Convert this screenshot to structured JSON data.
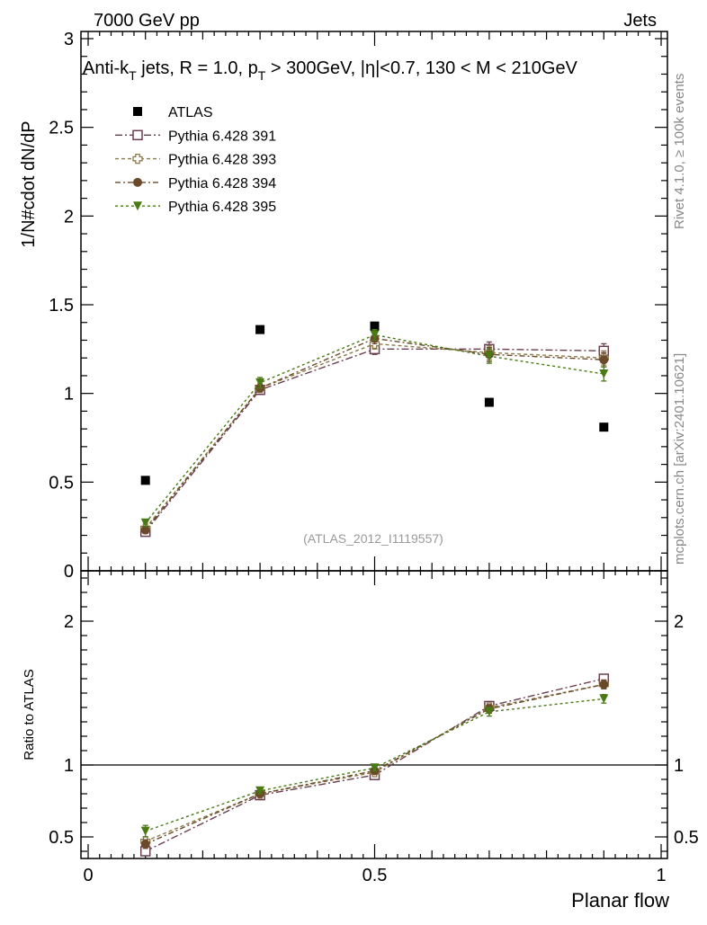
{
  "header": {
    "energy_label": "7000 GeV pp",
    "category_label": "Jets"
  },
  "side_text": {
    "rivet": "Rivet 4.1.0, ≥ 100k events",
    "mcplots": "mcplots.cern.ch [arXiv:2401.10621]"
  },
  "chart_data": [
    {
      "type": "scatter",
      "panel": "main",
      "title": "Anti-kT jets, R = 1.0, pT > 300GeV, |η|<0.7, 130 < M < 210GeV",
      "title_parts": {
        "a": "Anti-k",
        "b": "T",
        "c": " jets, R = 1.0, p",
        "d": "T",
        "e": " > 300GeV, |η|<0.7, 130 < M < 210GeV"
      },
      "ylabel": "1/N#cdot dN/dP",
      "xlabel": "Planar flow",
      "watermark": "(ATLAS_2012_I1119557)",
      "xlim": [
        0,
        1
      ],
      "ylim": [
        0,
        3
      ],
      "yticks": [
        "0",
        "0.5",
        "1",
        "1.5",
        "2",
        "2.5",
        "3"
      ],
      "x": [
        0.1,
        0.3,
        0.5,
        0.7,
        0.9
      ],
      "legend_position": "top-left",
      "series": [
        {
          "name": "ATLAS",
          "color": "#000000",
          "marker": "square-filled",
          "values": [
            0.51,
            1.36,
            1.38,
            0.95,
            0.81
          ],
          "errors": [
            0,
            0,
            0,
            0,
            0
          ]
        },
        {
          "name": "Pythia 6.428 391",
          "color": "#6b3f52",
          "marker": "square-open",
          "values": [
            0.22,
            1.02,
            1.25,
            1.25,
            1.24
          ],
          "errors": [
            0.02,
            0.02,
            0.03,
            0.04,
            0.04
          ]
        },
        {
          "name": "Pythia 6.428 393",
          "color": "#8c7a4a",
          "marker": "cross-open",
          "values": [
            0.24,
            1.03,
            1.28,
            1.23,
            1.2
          ],
          "errors": [
            0.02,
            0.02,
            0.03,
            0.04,
            0.04
          ]
        },
        {
          "name": "Pythia 6.428 394",
          "color": "#6a4a2a",
          "marker": "circle-filled",
          "values": [
            0.23,
            1.03,
            1.31,
            1.22,
            1.19
          ],
          "errors": [
            0.02,
            0.02,
            0.03,
            0.04,
            0.04
          ]
        },
        {
          "name": "Pythia 6.428 395",
          "color": "#4a7a14",
          "marker": "triangle-down-filled",
          "values": [
            0.27,
            1.06,
            1.33,
            1.21,
            1.11
          ],
          "errors": [
            0.02,
            0.03,
            0.03,
            0.04,
            0.04
          ]
        }
      ]
    },
    {
      "type": "scatter",
      "panel": "ratio",
      "ylabel": "Ratio to ATLAS",
      "xlabel": "Planar flow",
      "xlim": [
        0,
        1
      ],
      "ylim": [
        0.35,
        2.35
      ],
      "yticks": [
        "0.5",
        "1",
        "2"
      ],
      "xticks": [
        "0",
        "0.5",
        "1"
      ],
      "reference_line": 1,
      "x": [
        0.1,
        0.3,
        0.5,
        0.7,
        0.9
      ],
      "series": [
        {
          "name": "Pythia 6.428 391",
          "color": "#6b3f52",
          "marker": "square-open",
          "values": [
            0.4,
            0.79,
            0.93,
            1.41,
            1.6
          ],
          "errors": [
            0.03,
            0.02,
            0.02,
            0.03,
            0.03
          ]
        },
        {
          "name": "Pythia 6.428 393",
          "color": "#8c7a4a",
          "marker": "cross-open",
          "values": [
            0.47,
            0.8,
            0.95,
            1.4,
            1.56
          ],
          "errors": [
            0.03,
            0.02,
            0.02,
            0.03,
            0.03
          ]
        },
        {
          "name": "Pythia 6.428 394",
          "color": "#6a4a2a",
          "marker": "circle-filled",
          "values": [
            0.45,
            0.8,
            0.96,
            1.39,
            1.56
          ],
          "errors": [
            0.03,
            0.02,
            0.02,
            0.03,
            0.03
          ]
        },
        {
          "name": "Pythia 6.428 395",
          "color": "#4a7a14",
          "marker": "triangle-down-filled",
          "values": [
            0.54,
            0.82,
            0.98,
            1.37,
            1.46
          ],
          "errors": [
            0.04,
            0.02,
            0.02,
            0.03,
            0.03
          ]
        }
      ]
    }
  ]
}
